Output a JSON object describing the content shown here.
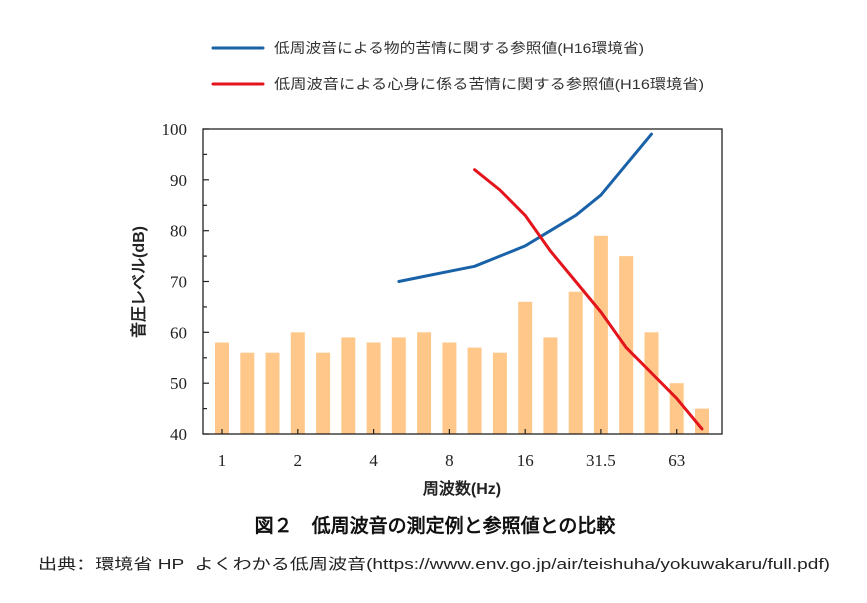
{
  "chart_data": {
    "type": "bar",
    "x": [
      1,
      1.25,
      1.6,
      2,
      2.5,
      3.15,
      4,
      5,
      6.3,
      8,
      10,
      12.5,
      16,
      20,
      25,
      31.5,
      40,
      50,
      63,
      80
    ],
    "series": [
      {
        "type": "bar",
        "values": [
          58,
          56,
          56,
          60,
          56,
          59,
          58,
          59,
          60,
          58,
          57,
          56,
          66,
          59,
          68,
          79,
          75,
          60,
          50,
          45
        ],
        "color": "#FFC88A"
      },
      {
        "type": "line",
        "name": "低周波音による物的苦情に関する参照値(H16環境省)",
        "values": [
          null,
          null,
          null,
          null,
          null,
          null,
          null,
          70,
          71,
          72,
          73,
          75,
          77,
          80,
          83,
          87,
          93,
          99,
          null,
          null
        ],
        "color": "#1A62A8"
      },
      {
        "type": "line",
        "name": "低周波音による心身に係る苦情に関する参照値(H16環境省)",
        "values": [
          null,
          null,
          null,
          null,
          null,
          null,
          null,
          null,
          null,
          null,
          92,
          88,
          83,
          76,
          70,
          64,
          57,
          52,
          47,
          41
        ],
        "color": "#E3141B"
      }
    ],
    "xticks": [
      "1",
      "2",
      "4",
      "8",
      "16",
      "31.5",
      "63"
    ],
    "yticks": [
      40,
      50,
      60,
      70,
      80,
      90,
      100
    ],
    "xlabel": "周波数(Hz)",
    "ylabel": "音圧レベル(dB)",
    "ylim": [
      40,
      100
    ],
    "legend": "top",
    "grid": false
  },
  "caption": "図２　低周波音の測定例と参照値との比較",
  "source": "出典：環境省 HP  よくわかる低周波音(https://www.env.go.jp/air/teishuha/yokuwakaru/full.pdf)"
}
